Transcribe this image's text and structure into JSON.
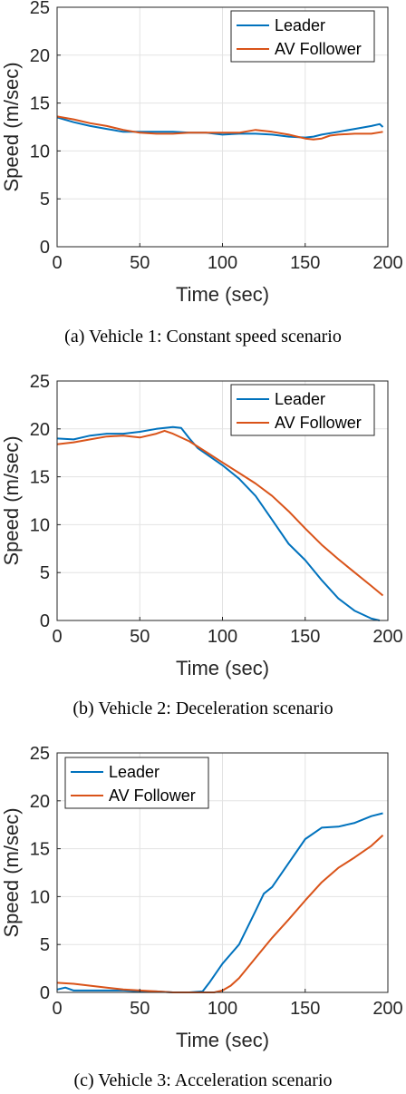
{
  "colors": {
    "leader": "#0072BD",
    "follower": "#D95319",
    "grid": "#e3e3e3",
    "axis": "#262626"
  },
  "chart_data": [
    {
      "type": "line",
      "caption": "(a) Vehicle 1: Constant speed scenario",
      "xlabel": "Time (sec)",
      "ylabel": "Speed (m/sec)",
      "xlim": [
        0,
        200
      ],
      "ylim": [
        0,
        25
      ],
      "xticks": [
        0,
        50,
        100,
        150,
        200
      ],
      "yticks": [
        0,
        5,
        10,
        15,
        20,
        25
      ],
      "grid": true,
      "legend_position": "top-right",
      "series": [
        {
          "name": "Leader",
          "color": "#0072BD",
          "x": [
            0,
            10,
            20,
            30,
            40,
            50,
            60,
            70,
            80,
            90,
            100,
            110,
            120,
            130,
            140,
            150,
            155,
            160,
            170,
            180,
            190,
            195,
            197
          ],
          "y": [
            13.5,
            13.0,
            12.6,
            12.3,
            12.0,
            12.0,
            12.0,
            12.0,
            11.9,
            11.9,
            11.7,
            11.8,
            11.8,
            11.7,
            11.5,
            11.4,
            11.5,
            11.7,
            12.0,
            12.3,
            12.6,
            12.8,
            12.5
          ]
        },
        {
          "name": "AV Follower",
          "color": "#D95319",
          "x": [
            0,
            10,
            20,
            30,
            40,
            50,
            60,
            70,
            80,
            90,
            100,
            110,
            120,
            130,
            140,
            150,
            155,
            160,
            165,
            170,
            180,
            190,
            197
          ],
          "y": [
            13.6,
            13.3,
            12.9,
            12.6,
            12.2,
            11.9,
            11.8,
            11.8,
            11.9,
            11.9,
            11.9,
            11.9,
            12.2,
            12.0,
            11.7,
            11.3,
            11.2,
            11.3,
            11.6,
            11.7,
            11.8,
            11.8,
            12.0
          ]
        }
      ]
    },
    {
      "type": "line",
      "caption": "(b) Vehicle 2: Deceleration scenario",
      "xlabel": "Time (sec)",
      "ylabel": "Speed (m/sec)",
      "xlim": [
        0,
        200
      ],
      "ylim": [
        0,
        25
      ],
      "xticks": [
        0,
        50,
        100,
        150,
        200
      ],
      "yticks": [
        0,
        5,
        10,
        15,
        20,
        25
      ],
      "grid": true,
      "legend_position": "top-right",
      "series": [
        {
          "name": "Leader",
          "color": "#0072BD",
          "x": [
            0,
            10,
            20,
            30,
            40,
            50,
            60,
            70,
            75,
            80,
            85,
            90,
            100,
            110,
            120,
            130,
            140,
            150,
            160,
            170,
            180,
            190,
            195
          ],
          "y": [
            19.0,
            18.9,
            19.3,
            19.5,
            19.5,
            19.7,
            20.0,
            20.2,
            20.1,
            19.0,
            18.0,
            17.4,
            16.2,
            14.8,
            13.0,
            10.5,
            8.0,
            6.3,
            4.2,
            2.3,
            1.0,
            0.2,
            0.0
          ]
        },
        {
          "name": "AV Follower",
          "color": "#D95319",
          "x": [
            0,
            10,
            20,
            30,
            40,
            50,
            60,
            65,
            70,
            80,
            90,
            100,
            110,
            120,
            130,
            140,
            150,
            160,
            170,
            180,
            190,
            197
          ],
          "y": [
            18.4,
            18.6,
            18.9,
            19.2,
            19.3,
            19.1,
            19.5,
            19.8,
            19.5,
            18.7,
            17.6,
            16.5,
            15.4,
            14.3,
            13.0,
            11.4,
            9.6,
            7.9,
            6.4,
            5.0,
            3.6,
            2.6
          ]
        }
      ]
    },
    {
      "type": "line",
      "caption": "(c) Vehicle 3: Acceleration scenario",
      "xlabel": "Time (sec)",
      "ylabel": "Speed (m/sec)",
      "xlim": [
        0,
        200
      ],
      "ylim": [
        0,
        25
      ],
      "xticks": [
        0,
        50,
        100,
        150,
        200
      ],
      "yticks": [
        0,
        5,
        10,
        15,
        20,
        25
      ],
      "grid": true,
      "legend_position": "top-left",
      "series": [
        {
          "name": "Leader",
          "color": "#0072BD",
          "x": [
            0,
            5,
            10,
            20,
            30,
            40,
            50,
            60,
            70,
            80,
            88,
            92,
            100,
            110,
            120,
            125,
            130,
            140,
            150,
            160,
            170,
            180,
            190,
            197
          ],
          "y": [
            0.3,
            0.5,
            0.2,
            0.2,
            0.2,
            0.2,
            0.1,
            0.1,
            0.0,
            0.0,
            0.1,
            1.0,
            3.0,
            5.0,
            8.5,
            10.3,
            11.0,
            13.5,
            16.0,
            17.2,
            17.3,
            17.7,
            18.4,
            18.7
          ]
        },
        {
          "name": "AV Follower",
          "color": "#D95319",
          "x": [
            0,
            10,
            20,
            30,
            40,
            50,
            60,
            70,
            80,
            90,
            95,
            100,
            105,
            110,
            120,
            130,
            140,
            150,
            160,
            170,
            180,
            190,
            197
          ],
          "y": [
            1.0,
            0.9,
            0.7,
            0.5,
            0.3,
            0.2,
            0.1,
            0.0,
            0.0,
            0.0,
            0.0,
            0.2,
            0.7,
            1.5,
            3.6,
            5.7,
            7.6,
            9.6,
            11.5,
            13.0,
            14.1,
            15.3,
            16.4
          ]
        }
      ]
    }
  ]
}
